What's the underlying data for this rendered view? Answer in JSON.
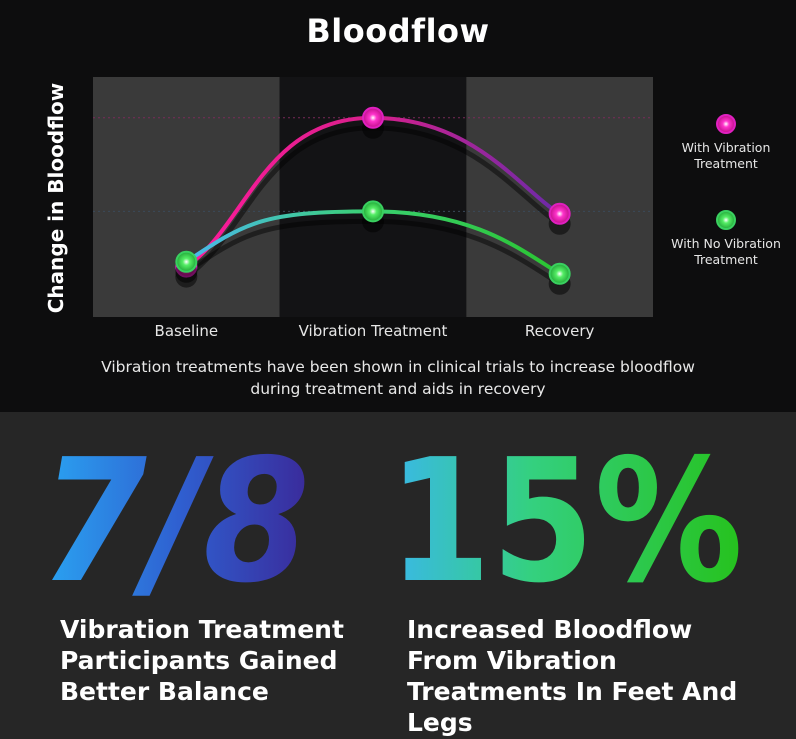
{
  "chart_data": {
    "type": "line",
    "title": "Bloodflow",
    "ylabel": "Change in Bloodflow",
    "xlabel": "",
    "categories": [
      "Baseline",
      "Vibration Treatment",
      "Recovery"
    ],
    "ylim": [
      0,
      10
    ],
    "series": [
      {
        "name": "With Vibration Treatment",
        "values": [
          2.1,
          8.3,
          4.3
        ],
        "color": "#e020c0"
      },
      {
        "name": "With No Vibration Treatment",
        "values": [
          2.3,
          4.4,
          1.8
        ],
        "color": "#3ad060"
      }
    ],
    "legend": {
      "placement": "right",
      "entries": [
        "With Vibration Treatment",
        "With No Vibration Treatment"
      ]
    },
    "grid": false,
    "caption": "Vibration treatments have been shown in clinical trials to increase bloodflow during treatment and aids in recovery"
  },
  "stats": [
    {
      "value": "7/8",
      "label": "Vibration Treatment Participants Gained Better Balance"
    },
    {
      "value": "15%",
      "label": "Increased Bloodflow From Vibration Treatments In Feet And Legs"
    }
  ]
}
